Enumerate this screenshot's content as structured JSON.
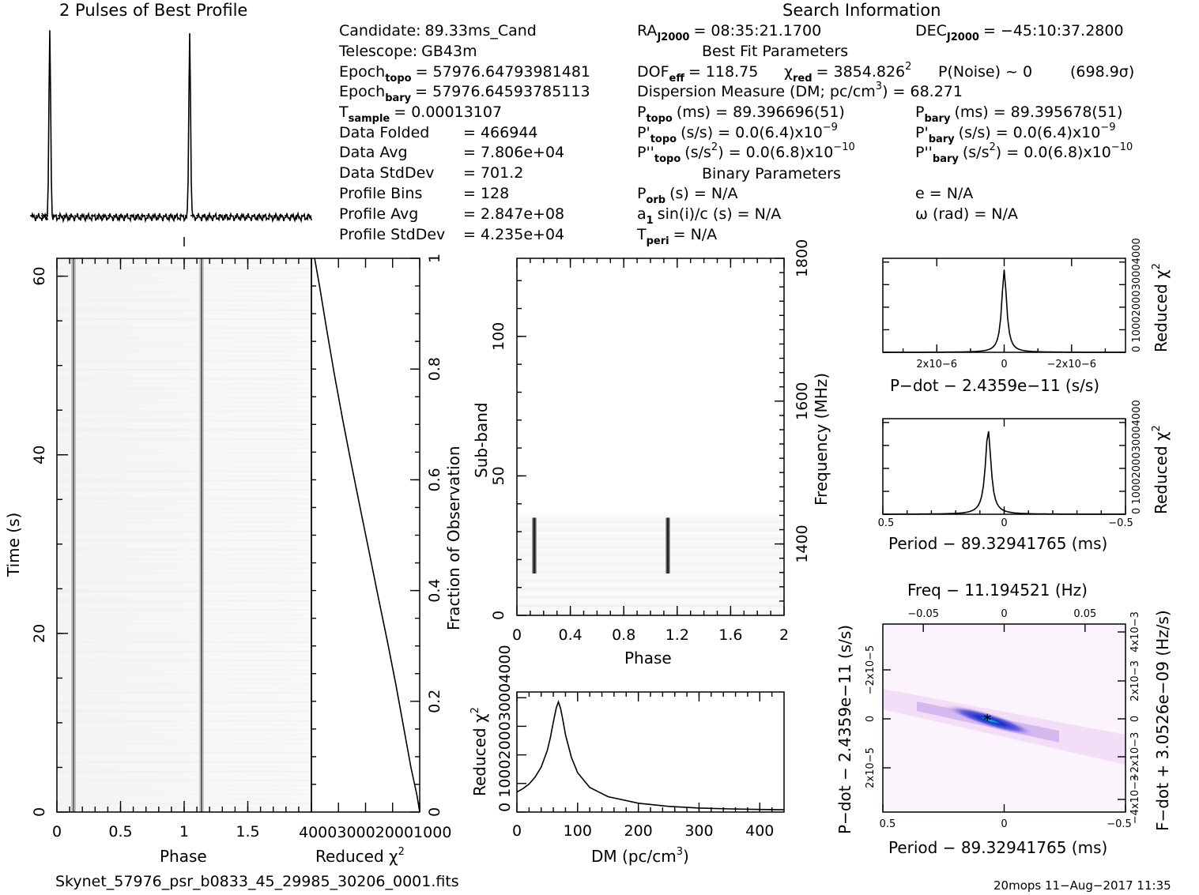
{
  "header": {
    "profile_title": "2 Pulses of Best Profile",
    "search_title": "Search Information",
    "best_fit_title": "Best Fit Parameters",
    "binary_title": "Binary Parameters"
  },
  "info": {
    "left": [
      {
        "label": "Candidate:",
        "sub": "",
        "value": "89.33ms_Cand"
      },
      {
        "label": "Telescope:",
        "sub": "",
        "value": "GB43m"
      },
      {
        "label": "Epoch",
        "sub": "topo",
        "value": "= 57976.64793981481"
      },
      {
        "label": "Epoch",
        "sub": "bary",
        "value": "= 57976.64593785113"
      },
      {
        "label": "T",
        "sub": "sample",
        "value": "=   0.00013107"
      },
      {
        "label": "Data Folded",
        "sub": "",
        "value": "=   466944"
      },
      {
        "label": "Data Avg",
        "sub": "",
        "value": "=   7.806e+04"
      },
      {
        "label": "Data StdDev",
        "sub": "",
        "value": "=   701.2"
      },
      {
        "label": "Profile Bins",
        "sub": "",
        "value": "=   128"
      },
      {
        "label": "Profile Avg",
        "sub": "",
        "value": "=   2.847e+08"
      },
      {
        "label": "Profile StdDev",
        "sub": "",
        "value": "=   4.235e+04"
      }
    ],
    "ra": {
      "label": "RA",
      "sub": "J2000",
      "value": "= 08:35:21.1700"
    },
    "dec": {
      "label": "DEC",
      "sub": "J2000",
      "value": "= −45:10:37.2800"
    },
    "dof": {
      "label": "DOF",
      "sub": "eff",
      "value": "= 118.75"
    },
    "chi2": {
      "label": "χ",
      "sup": "2",
      "sub": "red",
      "value": "= 3854.826"
    },
    "pnoise": "P(Noise) ~ 0",
    "sigma": "(698.9σ)",
    "dm_line": {
      "text": "Dispersion Measure (DM; pc/cm",
      "sup": "3",
      "value": ") = 68.271"
    },
    "ptopo": {
      "label": "P",
      "sub": "topo",
      "value": "(ms)  =  89.396696(51)"
    },
    "pbary": {
      "label": "P",
      "sub": "bary",
      "value": "(ms)  =  89.395678(51)"
    },
    "pdtopo": {
      "label": "P'",
      "sub": "topo",
      "value": "(s/s) = 0.0(6.4)x10",
      "exp": "−9"
    },
    "pdbary": {
      "label": "P'",
      "sub": "bary",
      "value": "(s/s) = 0.0(6.4)x10",
      "exp": "−9"
    },
    "pddtopo": {
      "label": "P''",
      "sub": "topo",
      "value": "(s/s",
      "sup": "2",
      "value2": ") = 0.0(6.8)x10",
      "exp": "−10"
    },
    "pddbary": {
      "label": "P''",
      "sub": "bary",
      "value": "(s/s",
      "sup": "2",
      "value2": ") = 0.0(6.8)x10",
      "exp": "−10"
    },
    "porb": {
      "label": "P",
      "sub": "orb",
      "value": "(s) = N/A"
    },
    "ecc": "e = N/A",
    "a1": {
      "pre": "a",
      "sub": "1",
      "value": "sin(i)/c (s) = N/A"
    },
    "omega": "ω (rad) = N/A",
    "tperi": {
      "label": "T",
      "sub": "peri",
      "value": "= N/A"
    }
  },
  "footer": {
    "filename": "Skynet_57976_psr_b0833_45_29985_30206_0001.fits",
    "stamp": "20mops 11−Aug−2017 11:35"
  },
  "chart_data": [
    {
      "id": "profile",
      "type": "line",
      "title": "2 Pulses of Best Profile",
      "x_range": [
        0,
        2
      ],
      "peaks_phase": [
        0.13,
        1.13
      ],
      "baseline_level": 0.0,
      "peak_level": 1.0,
      "note_marks": [
        "dotted mean line",
        "x error marker"
      ]
    },
    {
      "id": "time_phase",
      "type": "heatmap",
      "xlabel": "Phase",
      "ylabel": "Time (s)",
      "xlim": [
        0,
        2
      ],
      "ylim": [
        0,
        62
      ],
      "x_ticks": [
        "0",
        "0.5",
        "1",
        "1.5"
      ],
      "y_ticks": [
        "0",
        "20",
        "40",
        "60"
      ],
      "pulse_phases": [
        0.13,
        1.13
      ]
    },
    {
      "id": "chi2_vs_time",
      "type": "line",
      "xlabel": "Reduced χ",
      "xlabel_sup": "2",
      "ylabel": "Fraction of Observation",
      "x_tick_text": "4000300020001000",
      "y_ticks": [
        "0",
        "0.2",
        "0.4",
        "0.6",
        "0.8",
        "1"
      ],
      "x": [
        3880,
        3700,
        3430,
        3150,
        2850,
        2530,
        2200,
        1870,
        1540,
        1200,
        880,
        580,
        320,
        100,
        0
      ],
      "y": [
        1.0,
        0.95,
        0.87,
        0.79,
        0.71,
        0.63,
        0.55,
        0.47,
        0.39,
        0.31,
        0.23,
        0.15,
        0.08,
        0.03,
        0.0
      ]
    },
    {
      "id": "subband_phase",
      "type": "heatmap",
      "xlabel": "Phase",
      "ylabel": "Sub-band",
      "y2label": "Frequency (MHz)",
      "xlim": [
        0,
        2
      ],
      "ylim": [
        0,
        128
      ],
      "x_ticks": [
        "0",
        "0.4",
        "0.8",
        "1.2",
        "1.6",
        "2"
      ],
      "y_ticks": [
        "0",
        "50",
        "100"
      ],
      "y2_ticks": [
        "1400",
        "1600",
        "1800"
      ],
      "signal_subbands": [
        15,
        35
      ],
      "pulse_phases": [
        0.13,
        1.13
      ]
    },
    {
      "id": "dm_curve",
      "type": "line",
      "xlabel": "DM (pc/cm",
      "xlabel_sup": "3",
      "xlabel_tail": ")",
      "ylabel": "Reduced χ",
      "ylabel_sup": "2",
      "y_tick_text": "0 1000200030004000",
      "x_ticks": [
        "0",
        "100",
        "200",
        "300",
        "400"
      ],
      "xlim": [
        0,
        440
      ],
      "ylim": [
        0,
        4200
      ],
      "x": [
        0,
        10,
        20,
        30,
        40,
        50,
        55,
        60,
        65,
        68.3,
        72,
        76,
        80,
        90,
        100,
        120,
        150,
        200,
        250,
        300,
        350,
        400,
        440
      ],
      "y": [
        700,
        820,
        980,
        1220,
        1570,
        2150,
        2600,
        3150,
        3650,
        3854,
        3620,
        3180,
        2700,
        1900,
        1380,
        860,
        540,
        310,
        200,
        140,
        110,
        90,
        80
      ]
    },
    {
      "id": "pdot_curve",
      "type": "line",
      "xlabel": "P−dot − 2.4359e−11 (s/s)",
      "ylabel": "Reduced χ",
      "ylabel_sup": "2",
      "y_tick_text": "0 1000200030004000",
      "x_ticks": [
        "2x10−6",
        "0",
        "−2x10−6"
      ],
      "xlim": [
        3.6e-06,
        -3.6e-06
      ],
      "peak_x": 0,
      "peak_y": 3854
    },
    {
      "id": "period_curve",
      "type": "line",
      "xlabel": "Period − 89.32941765 (ms)",
      "ylabel": "Reduced χ",
      "ylabel_sup": "2",
      "y_tick_text": "0 1000200030004000",
      "x_ticks": [
        "0.5",
        "0",
        "−0.5"
      ],
      "xlim": [
        0.5,
        -0.5
      ],
      "peak_x": 0.066,
      "peak_y": 3854
    },
    {
      "id": "p_pdot_plane",
      "type": "heatmap",
      "title": "Freq − 11.194521 (Hz)",
      "xlabel": "Period − 89.32941765 (ms)",
      "ylabel": "P−dot − 2.4359e−11 (s/s)",
      "y2label": "F−dot + 3.0526e−09 (Hz/s)",
      "x_ticks": [
        "0.5",
        "0",
        "−0.5"
      ],
      "x2_ticks": [
        "−0.05",
        "0",
        "0.05"
      ],
      "y_ticks": [
        "−2x10−5",
        "0",
        "2x10−5"
      ],
      "y2_ticks": [
        "4x10−3",
        "2x10−3",
        "0",
        "−2x10−3",
        "−4x10−3"
      ],
      "best_x": 0.066,
      "best_y": 0
    }
  ]
}
